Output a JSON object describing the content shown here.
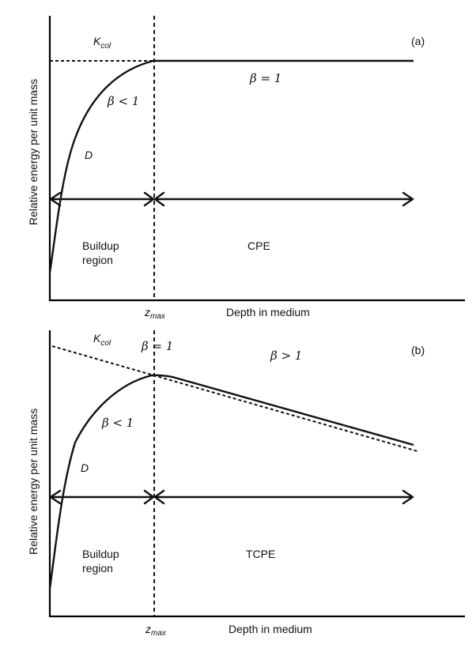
{
  "panel_a": {
    "tag": "(a)",
    "kcol_main": "K",
    "kcol_sub": "col",
    "beta_equal": "β = 1",
    "beta_less": "β < 1",
    "dose_label": "D",
    "region_left_line1": "Buildup",
    "region_left_line2": "region",
    "region_right": "CPE",
    "zmax_main": "z",
    "zmax_sub": "max",
    "xlabel": "Depth in medium",
    "ylabel": "Relative energy per unit mass"
  },
  "panel_b": {
    "tag": "(b)",
    "kcol_main": "K",
    "kcol_sub": "col",
    "beta_equal": "β = 1",
    "beta_greater": "β > 1",
    "beta_less": "β < 1",
    "dose_label": "D",
    "region_left_line1": "Buildup",
    "region_left_line2": "region",
    "region_right": "TCPE",
    "zmax_main": "z",
    "zmax_sub": "max",
    "xlabel": "Depth in medium",
    "ylabel": "Relative energy per unit mass"
  }
}
